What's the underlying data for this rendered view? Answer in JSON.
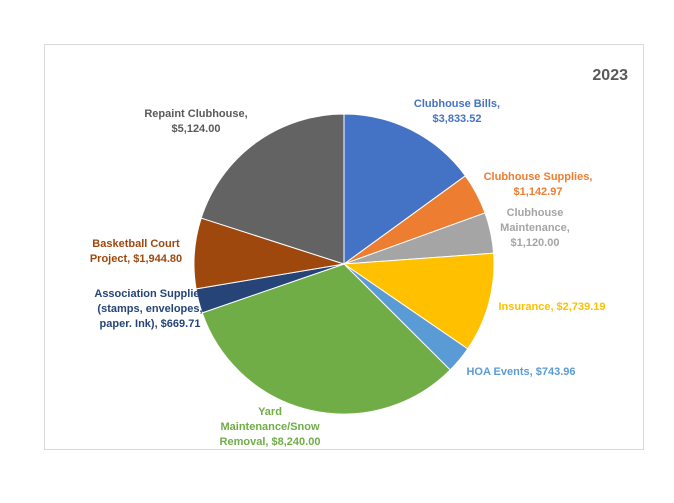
{
  "chart_data": {
    "type": "pie",
    "title": "2023",
    "slices": [
      {
        "label": [
          "Clubhouse Bills,",
          "$3,833.52"
        ],
        "value": 3833.52,
        "color": "#4472C4"
      },
      {
        "label": [
          "Clubhouse Supplies,",
          "$1,142.97"
        ],
        "value": 1142.97,
        "color": "#ED7D31"
      },
      {
        "label": [
          "Clubhouse",
          "Maintenance,",
          "$1,120.00"
        ],
        "value": 1120.0,
        "color": "#A5A5A5"
      },
      {
        "label": [
          "Insurance, $2,739.19"
        ],
        "value": 2739.19,
        "color": "#FFC000"
      },
      {
        "label": [
          "HOA Events, $743.96"
        ],
        "value": 743.96,
        "color": "#5B9BD5"
      },
      {
        "label": [
          "Yard",
          "Maintenance/Snow",
          "Removal, $8,240.00"
        ],
        "value": 8240.0,
        "color": "#70AD47"
      },
      {
        "label": [
          "Association Supplies",
          "(stamps, envelopes,",
          "paper. Ink), $669.71"
        ],
        "value": 669.71,
        "color": "#264478"
      },
      {
        "label": [
          "Basketball Court",
          "Project, $1,944.80"
        ],
        "value": 1944.8,
        "color": "#9E480E"
      },
      {
        "label": [
          "Repaint Clubhouse,",
          "$5,124.00"
        ],
        "value": 5124.0,
        "color": "#636363"
      }
    ]
  }
}
